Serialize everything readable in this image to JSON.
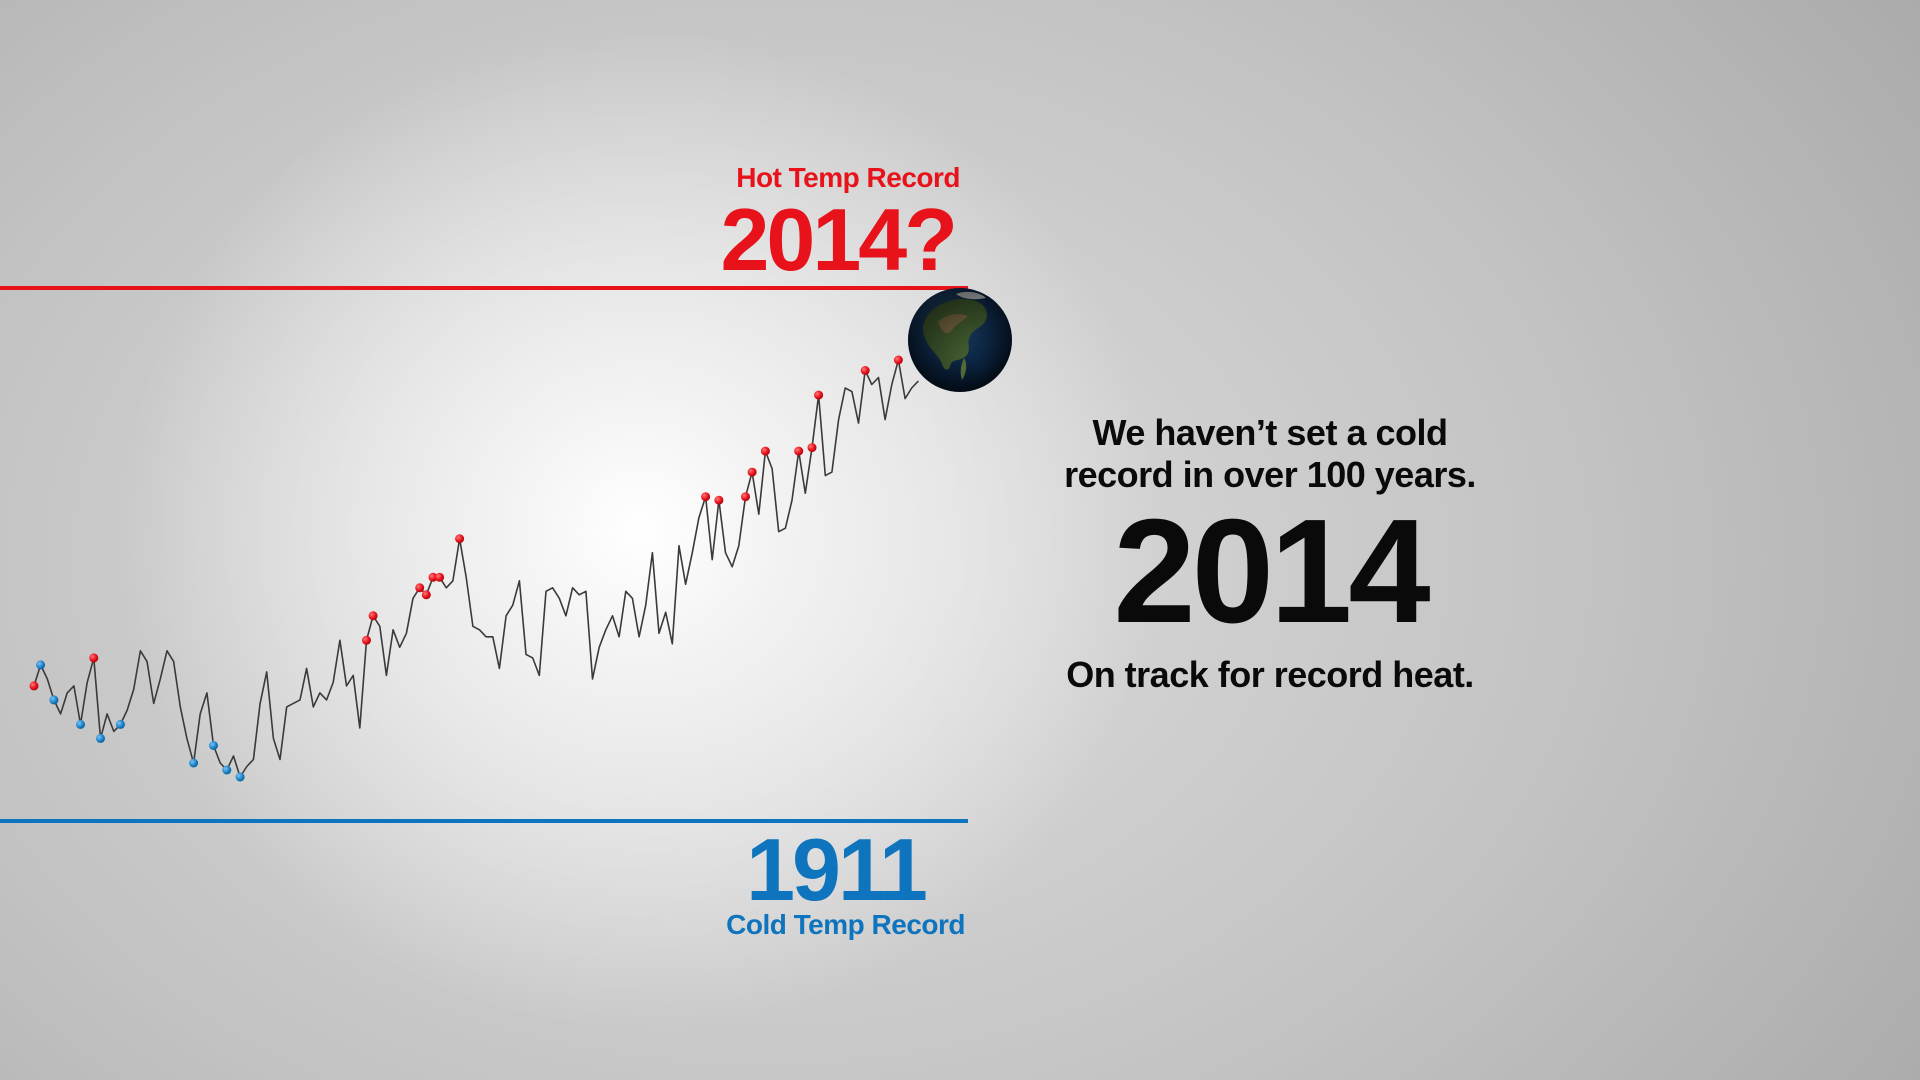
{
  "chart_data": {
    "type": "line",
    "title": "",
    "xlabel": "",
    "ylabel": "",
    "xlim": [
      1880,
      2014
    ],
    "ylim": [
      -0.5,
      0.75
    ],
    "hot_record": {
      "label": "Hot Temp Record",
      "year": "2014?",
      "value": 0.67
    },
    "cold_record": {
      "year": "1911",
      "label": "Cold Temp Record",
      "value": -0.48
    },
    "x": [
      1880,
      1881,
      1882,
      1883,
      1884,
      1885,
      1886,
      1887,
      1888,
      1889,
      1890,
      1891,
      1892,
      1893,
      1894,
      1895,
      1896,
      1897,
      1898,
      1899,
      1900,
      1901,
      1902,
      1903,
      1904,
      1905,
      1906,
      1907,
      1908,
      1909,
      1910,
      1911,
      1912,
      1913,
      1914,
      1915,
      1916,
      1917,
      1918,
      1919,
      1920,
      1921,
      1922,
      1923,
      1924,
      1925,
      1926,
      1927,
      1928,
      1929,
      1930,
      1931,
      1932,
      1933,
      1934,
      1935,
      1936,
      1937,
      1938,
      1939,
      1940,
      1941,
      1942,
      1943,
      1944,
      1945,
      1946,
      1947,
      1948,
      1949,
      1950,
      1951,
      1952,
      1953,
      1954,
      1955,
      1956,
      1957,
      1958,
      1959,
      1960,
      1961,
      1962,
      1963,
      1964,
      1965,
      1966,
      1967,
      1968,
      1969,
      1970,
      1971,
      1972,
      1973,
      1974,
      1975,
      1976,
      1977,
      1978,
      1979,
      1980,
      1981,
      1982,
      1983,
      1984,
      1985,
      1986,
      1987,
      1988,
      1989,
      1990,
      1991,
      1992,
      1993,
      1994,
      1995,
      1996,
      1997,
      1998,
      1999,
      2000,
      2001,
      2002,
      2003,
      2004,
      2005,
      2006,
      2007,
      2008,
      2009,
      2010,
      2011,
      2012,
      2013
    ],
    "series": [
      {
        "values": [
          -0.22,
          -0.16,
          -0.2,
          -0.26,
          -0.3,
          -0.24,
          -0.22,
          -0.33,
          -0.21,
          -0.14,
          -0.37,
          -0.3,
          -0.35,
          -0.33,
          -0.29,
          -0.23,
          -0.12,
          -0.15,
          -0.27,
          -0.2,
          -0.12,
          -0.15,
          -0.28,
          -0.37,
          -0.44,
          -0.3,
          -0.24,
          -0.39,
          -0.44,
          -0.46,
          -0.42,
          -0.48,
          -0.45,
          -0.43,
          -0.27,
          -0.18,
          -0.37,
          -0.43,
          -0.28,
          -0.27,
          -0.26,
          -0.17,
          -0.28,
          -0.24,
          -0.26,
          -0.21,
          -0.09,
          -0.22,
          -0.19,
          -0.34,
          -0.09,
          -0.02,
          -0.05,
          -0.19,
          -0.06,
          -0.11,
          -0.07,
          0.03,
          0.06,
          0.04,
          0.09,
          0.09,
          0.06,
          0.08,
          0.2,
          0.09,
          -0.05,
          -0.06,
          -0.08,
          -0.08,
          -0.17,
          -0.02,
          0.01,
          0.08,
          -0.13,
          -0.14,
          -0.19,
          0.05,
          0.06,
          0.03,
          -0.02,
          0.06,
          0.04,
          0.05,
          -0.2,
          -0.11,
          -0.06,
          -0.02,
          -0.08,
          0.05,
          0.03,
          -0.08,
          0.01,
          0.16,
          -0.07,
          -0.01,
          -0.1,
          0.18,
          0.07,
          0.16,
          0.26,
          0.32,
          0.14,
          0.31,
          0.16,
          0.12,
          0.18,
          0.32,
          0.39,
          0.27,
          0.45,
          0.4,
          0.22,
          0.23,
          0.31,
          0.45,
          0.33,
          0.46,
          0.61,
          0.38,
          0.39,
          0.54,
          0.63,
          0.62,
          0.53,
          0.68,
          0.64,
          0.66,
          0.54,
          0.64,
          0.71,
          0.6,
          0.63,
          0.65
        ],
        "hot_record_years": [
          1880,
          1889,
          1930,
          1931,
          1938,
          1939,
          1940,
          1941,
          1944,
          1981,
          1983,
          1987,
          1988,
          1990,
          1995,
          1997,
          1998,
          2005,
          2010
        ],
        "cold_record_years": [
          1881,
          1883,
          1887,
          1890,
          1893,
          1904,
          1907,
          1909,
          1911
        ]
      }
    ],
    "colors": {
      "hot": "#e8121b",
      "cold": "#0e74bd",
      "line": "#3a3a3a"
    },
    "grid": false,
    "legend": "none"
  },
  "annotations": {
    "hot_label": "Hot Temp Record",
    "hot_year": "2014?",
    "cold_year": "1911",
    "cold_label": "Cold Temp Record"
  },
  "side_panel": {
    "line1": "We haven’t set a cold",
    "line2": "record in over 100 years.",
    "year": "2014",
    "tagline": "On track for record heat."
  },
  "icons": {
    "earth": "earth-globe-icon"
  }
}
